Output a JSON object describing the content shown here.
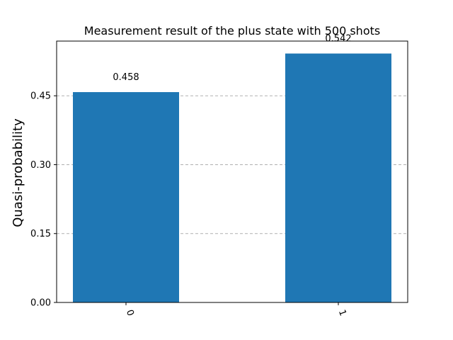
{
  "chart_data": {
    "type": "bar",
    "title": "Measurement result of the plus state with 500 shots",
    "xlabel": "",
    "ylabel": "Quasi-probability",
    "categories": [
      "0",
      "1"
    ],
    "values": [
      0.458,
      0.542
    ],
    "value_labels": [
      "0.458",
      "0.542"
    ],
    "yticks": [
      0.0,
      0.15,
      0.3,
      0.45
    ],
    "ytick_labels": [
      "0.00",
      "0.15",
      "0.30",
      "0.45"
    ],
    "ylim": [
      0,
      0.5691
    ],
    "grid": "y-dashed",
    "bar_color": "#1f77b4"
  }
}
